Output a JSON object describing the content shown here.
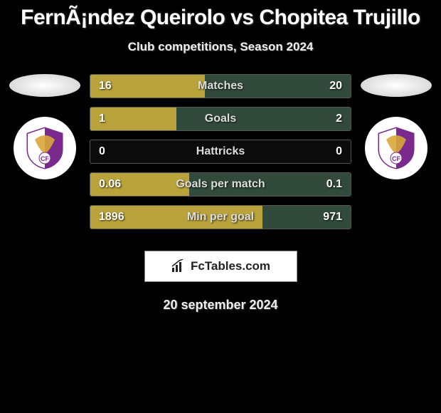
{
  "title": "FernÃ¡ndez Queirolo vs Chopitea Trujillo",
  "subtitle": "Club competitions, Season 2024",
  "date": "20 september 2024",
  "colors": {
    "left_fill": "#b9a33a",
    "right_fill": "#314a3c",
    "bar_border": "#555555",
    "background": "#000000"
  },
  "club_badge": {
    "purple": "#7a2a8c",
    "gold": "#d9a63a",
    "white": "#ffffff"
  },
  "brand": "FcTables.com",
  "stats": [
    {
      "label": "Matches",
      "left_val": "16",
      "right_val": "20",
      "left_pct": 44,
      "right_pct": 56
    },
    {
      "label": "Goals",
      "left_val": "1",
      "right_val": "2",
      "left_pct": 33,
      "right_pct": 67
    },
    {
      "label": "Hattricks",
      "left_val": "0",
      "right_val": "0",
      "left_pct": 0,
      "right_pct": 0
    },
    {
      "label": "Goals per match",
      "left_val": "0.06",
      "right_val": "0.1",
      "left_pct": 38,
      "right_pct": 62
    },
    {
      "label": "Min per goal",
      "left_val": "1896",
      "right_val": "971",
      "left_pct": 66,
      "right_pct": 34
    }
  ]
}
